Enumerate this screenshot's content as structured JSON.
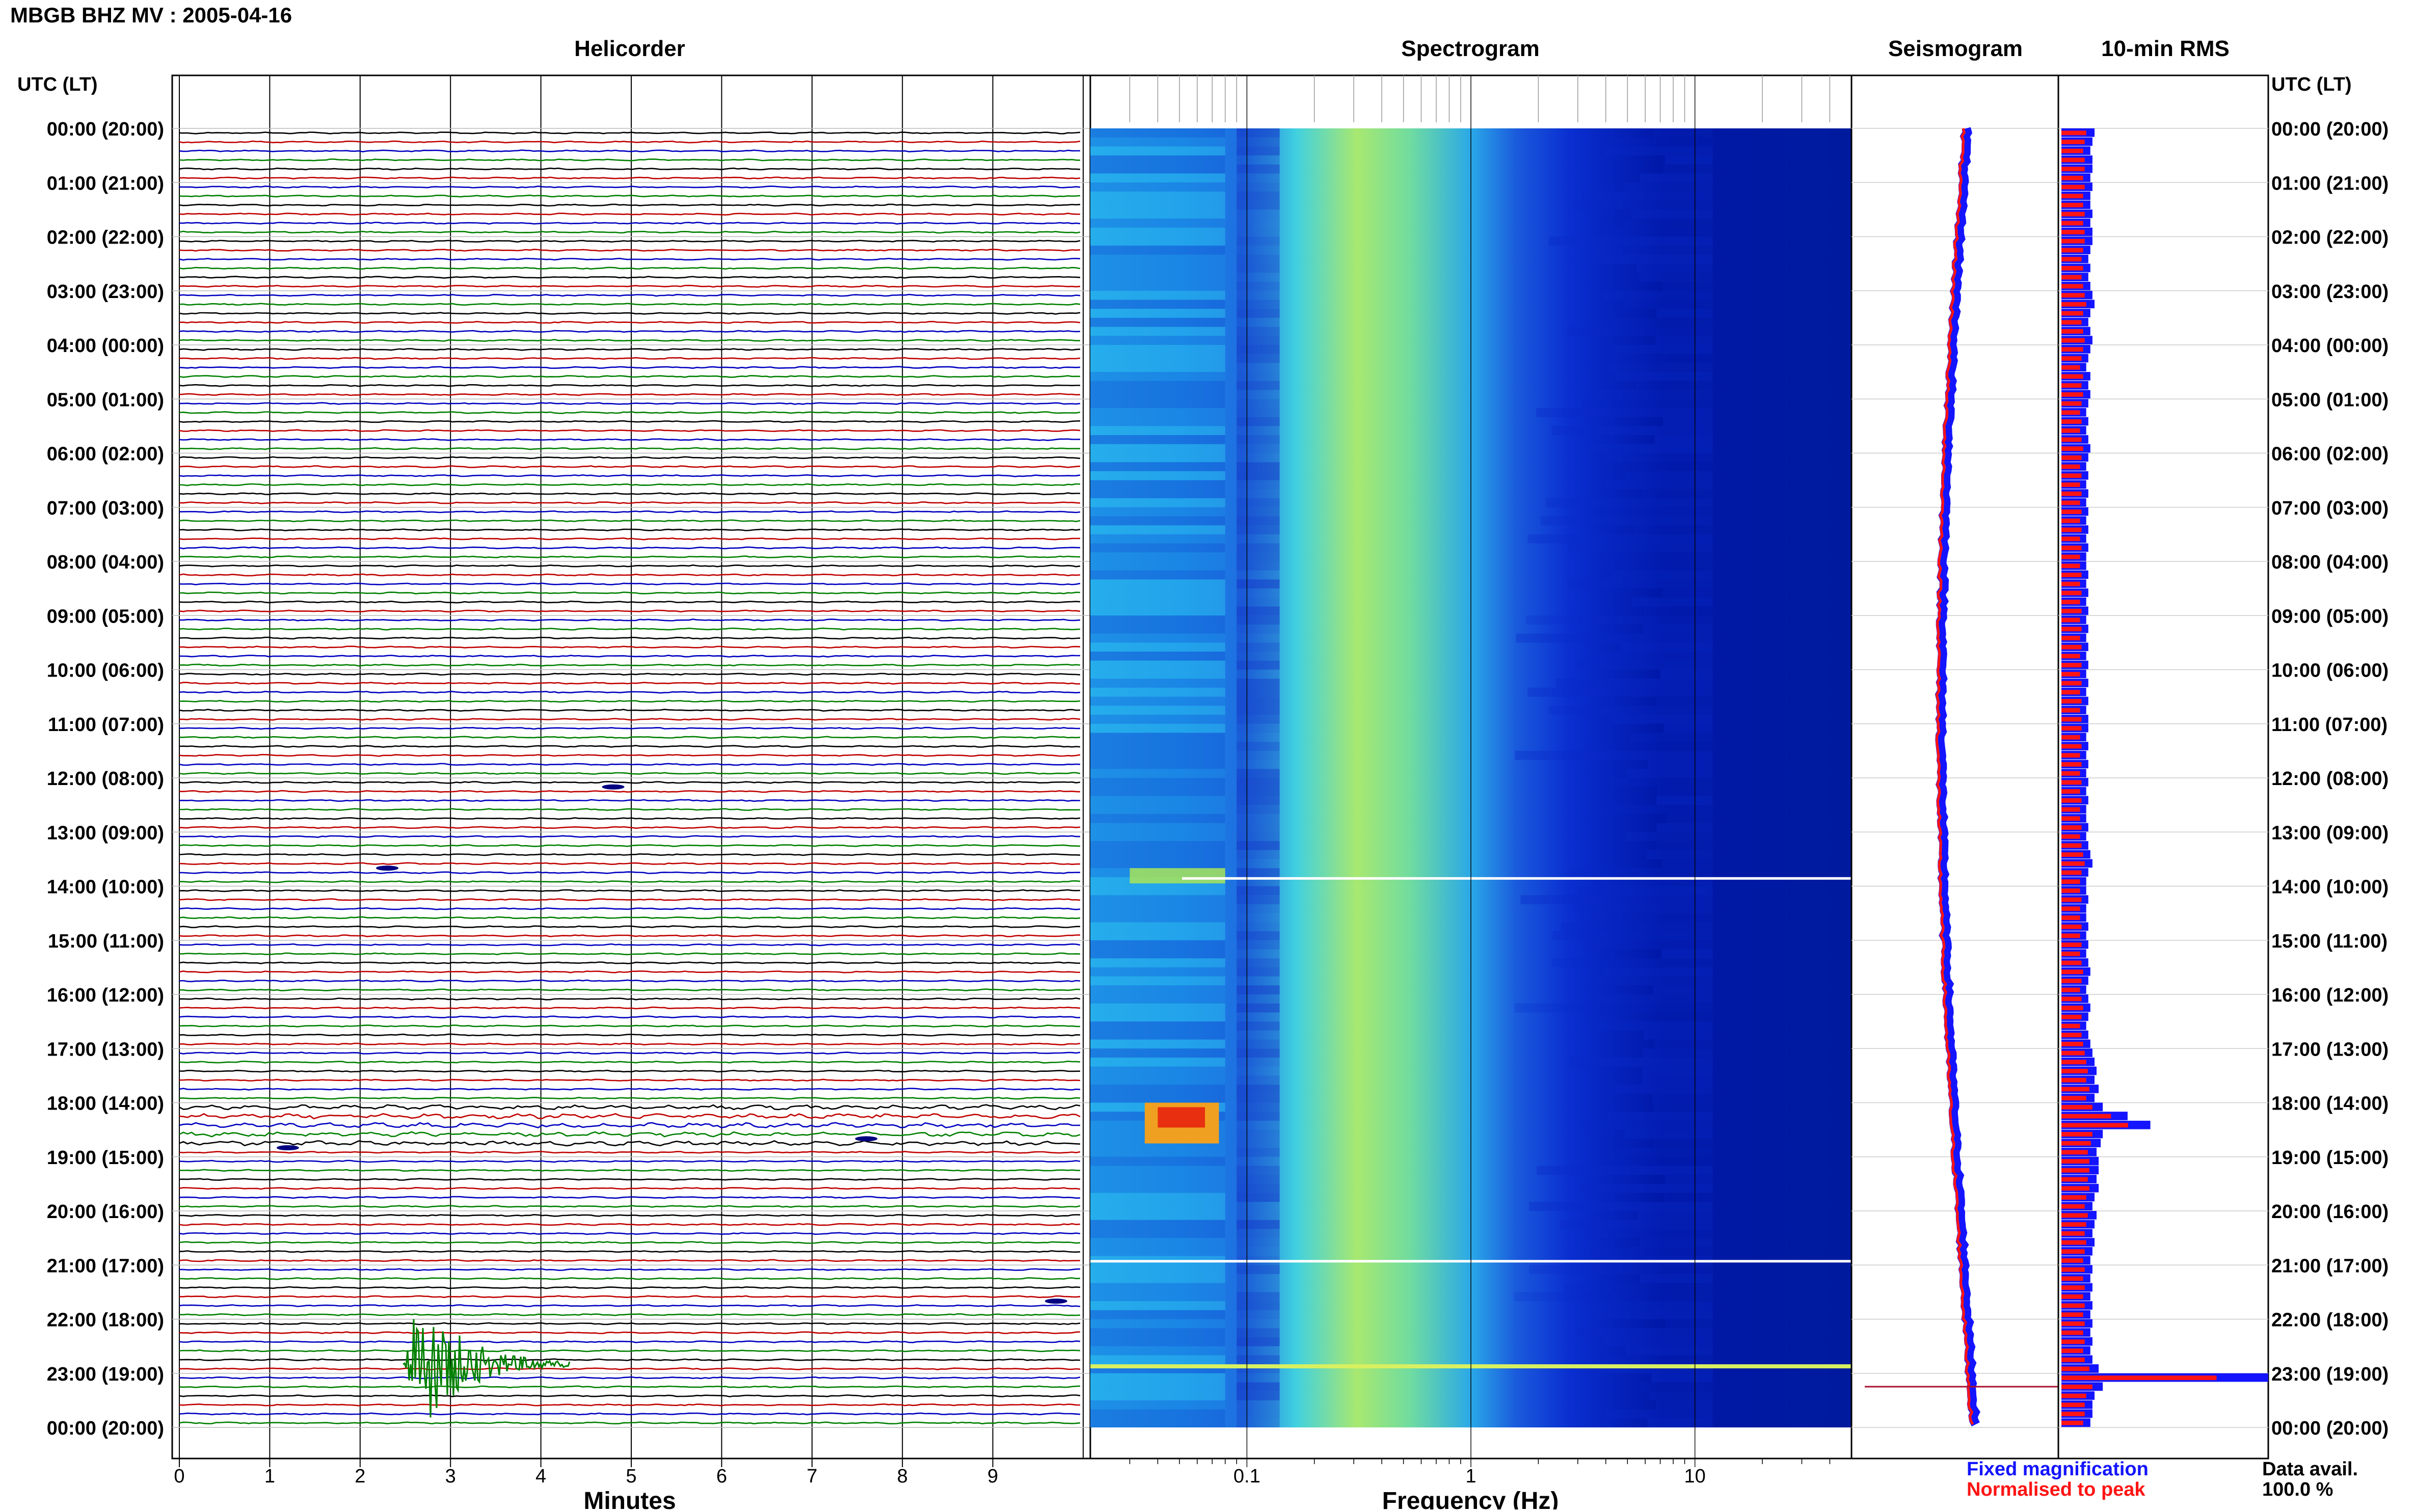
{
  "header": {
    "title": "MBGB BHZ MV : 2005-04-16",
    "utc_left": "UTC (LT)",
    "utc_right": "UTC (LT)"
  },
  "panels": {
    "helicorder": "Helicorder",
    "spectrogram": "Spectrogram",
    "seismogram": "Seismogram",
    "rms": "10-min RMS"
  },
  "axes": {
    "minutes_label": "Minutes",
    "frequency_label": "Frequency (Hz)",
    "minute_ticks": [
      "0",
      "1",
      "2",
      "3",
      "4",
      "5",
      "6",
      "7",
      "8",
      "9"
    ],
    "frequency_ticks": [
      "0.1",
      "1",
      "10"
    ]
  },
  "time_labels": [
    "00:00 (20:00)",
    "01:00 (21:00)",
    "02:00 (22:00)",
    "03:00 (23:00)",
    "04:00 (00:00)",
    "05:00 (01:00)",
    "06:00 (02:00)",
    "07:00 (03:00)",
    "08:00 (04:00)",
    "09:00 (05:00)",
    "10:00 (06:00)",
    "11:00 (07:00)",
    "12:00 (08:00)",
    "13:00 (09:00)",
    "14:00 (10:00)",
    "15:00 (11:00)",
    "16:00 (12:00)",
    "17:00 (13:00)",
    "18:00 (14:00)",
    "19:00 (15:00)",
    "20:00 (16:00)",
    "21:00 (17:00)",
    "22:00 (18:00)",
    "23:00 (19:00)",
    "00:00 (20:00)"
  ],
  "legend": {
    "fixed": "Fixed magnification",
    "normalised": "Normalised to peak",
    "fixed_color": "#1414ff",
    "normalised_color": "#ff1414"
  },
  "data_avail": {
    "label": "Data avail.",
    "value": "100.0 %"
  },
  "colors": {
    "trace_cycle": [
      "#000000",
      "#c00000",
      "#0000c0",
      "#008000"
    ]
  },
  "chart_data": {
    "type": "heatmap",
    "title": "MBGB BHZ MV : 2005-04-16",
    "helicorder": {
      "xlabel": "Minutes",
      "xlim": [
        0,
        10
      ],
      "rows_per_hour": 6,
      "row_count": 144,
      "events": [
        {
          "time_utc": "12:10",
          "minute": 4.8,
          "description": "small event"
        },
        {
          "time_utc": "13:40",
          "minute": 2.3,
          "description": "small events"
        },
        {
          "time_utc": "18:50",
          "minute": 1.2,
          "description": "small events"
        },
        {
          "time_utc": "18:40",
          "minute": 7.6,
          "description": "small event"
        },
        {
          "time_utc": "21:40",
          "minute": 9.7,
          "description": "small event"
        },
        {
          "time_utc": "22:50",
          "minute": 2.7,
          "description": "large event"
        }
      ]
    },
    "spectrogram": {
      "xlabel": "Frequency (Hz)",
      "xscale": "log",
      "xlim": [
        0.02,
        50
      ],
      "dominant_band_hz": [
        0.2,
        1.0
      ],
      "notable_times_utc": [
        "13:50",
        "18:10",
        "21:00",
        "22:50"
      ]
    },
    "rms": {
      "series": [
        {
          "name": "Fixed magnification",
          "color": "#1414ff"
        },
        {
          "name": "Normalised to peak",
          "color": "#ff1414"
        }
      ],
      "interval_min": 10,
      "relative_values": [
        0.16,
        0.15,
        0.14,
        0.15,
        0.15,
        0.14,
        0.15,
        0.14,
        0.14,
        0.15,
        0.14,
        0.15,
        0.15,
        0.14,
        0.13,
        0.14,
        0.13,
        0.14,
        0.15,
        0.16,
        0.14,
        0.13,
        0.14,
        0.15,
        0.14,
        0.13,
        0.12,
        0.14,
        0.13,
        0.14,
        0.13,
        0.12,
        0.13,
        0.12,
        0.13,
        0.14,
        0.13,
        0.12,
        0.13,
        0.12,
        0.13,
        0.12,
        0.13,
        0.12,
        0.13,
        0.12,
        0.13,
        0.12,
        0.12,
        0.13,
        0.12,
        0.13,
        0.12,
        0.13,
        0.12,
        0.13,
        0.12,
        0.13,
        0.12,
        0.13,
        0.12,
        0.13,
        0.12,
        0.13,
        0.12,
        0.13,
        0.13,
        0.12,
        0.13,
        0.12,
        0.13,
        0.12,
        0.13,
        0.12,
        0.13,
        0.12,
        0.12,
        0.13,
        0.12,
        0.13,
        0.14,
        0.15,
        0.13,
        0.12,
        0.12,
        0.13,
        0.12,
        0.12,
        0.13,
        0.12,
        0.13,
        0.12,
        0.13,
        0.14,
        0.13,
        0.12,
        0.13,
        0.14,
        0.13,
        0.12,
        0.13,
        0.14,
        0.15,
        0.16,
        0.17,
        0.16,
        0.18,
        0.16,
        0.2,
        0.32,
        0.43,
        0.2,
        0.19,
        0.17,
        0.18,
        0.18,
        0.17,
        0.18,
        0.16,
        0.15,
        0.17,
        0.16,
        0.15,
        0.16,
        0.15,
        0.14,
        0.15,
        0.14,
        0.15,
        0.14,
        0.15,
        0.14,
        0.15,
        0.14,
        0.15,
        0.14,
        0.15,
        0.18,
        1.0,
        0.2,
        0.16,
        0.15,
        0.15,
        0.14
      ]
    },
    "seismogram": {
      "series": [
        {
          "name": "Fixed magnification",
          "color": "#1414ff"
        },
        {
          "name": "Normalised to peak",
          "color": "#ff1414"
        }
      ]
    }
  }
}
